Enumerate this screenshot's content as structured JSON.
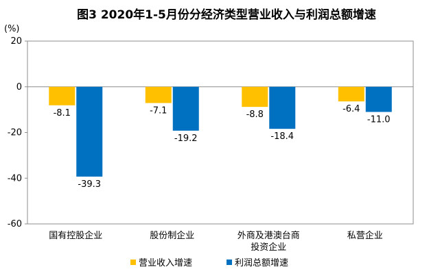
{
  "chart_data": {
    "type": "bar",
    "title": "图3  2020年1-5月份分经济类型营业收入与利润总额增速",
    "unit_label": "(%)",
    "categories": [
      "国有控股企业",
      "股份制企业",
      "外商及港澳台商\n投资企业",
      "私营企业"
    ],
    "series": [
      {
        "name": "营业收入增速",
        "color": "#FFC000",
        "values": [
          -8.1,
          -7.1,
          -8.8,
          -6.4
        ]
      },
      {
        "name": "利润总额增速",
        "color": "#0070C0",
        "values": [
          -39.3,
          -19.2,
          -18.4,
          -11.0
        ]
      }
    ],
    "data_labels": [
      [
        "-8.1",
        "-7.1",
        "-8.8",
        "-6.4"
      ],
      [
        "-39.3",
        "-19.2",
        "-18.4",
        "-11.0"
      ]
    ],
    "ylim": [
      -60,
      20
    ],
    "yticks": [
      20,
      0,
      -20,
      -40,
      -60
    ],
    "grid": false,
    "legend_position": "bottom"
  }
}
